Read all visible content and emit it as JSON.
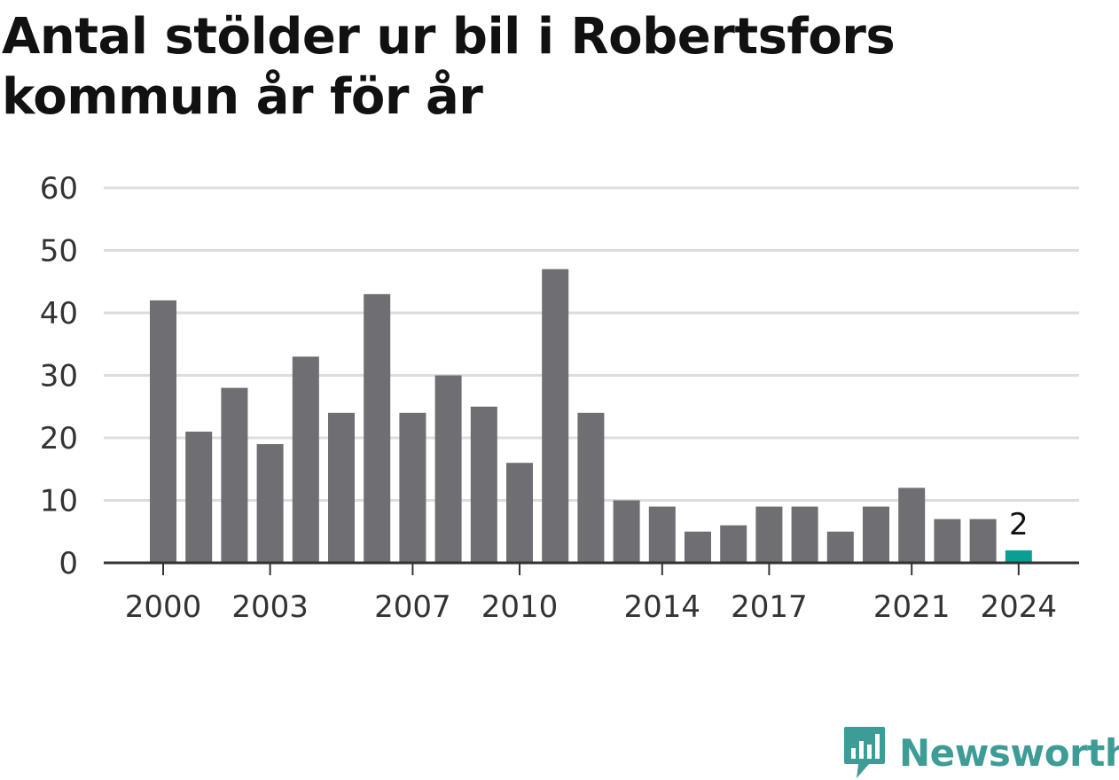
{
  "title": "Antal stölder ur bil i Robertsfors kommun år för år",
  "brand": {
    "name": "Newsworthy",
    "icon": "newsworthy-logo-icon",
    "color": "#3e9c96"
  },
  "colors": {
    "bar": "#6e6e73",
    "highlight": "#0a9e94",
    "grid": "#dddddd",
    "axis": "#333333"
  },
  "chart_data": {
    "type": "bar",
    "title": "Antal stölder ur bil i Robertsfors kommun år för år",
    "xlabel": "",
    "ylabel": "",
    "categories": [
      "2000",
      "2001",
      "2002",
      "2003",
      "2004",
      "2005",
      "2006",
      "2007",
      "2008",
      "2009",
      "2010",
      "2011",
      "2012",
      "2013",
      "2014",
      "2015",
      "2016",
      "2017",
      "2018",
      "2019",
      "2020",
      "2021",
      "2022",
      "2023",
      "2024"
    ],
    "values": [
      42,
      21,
      28,
      19,
      33,
      24,
      43,
      24,
      30,
      25,
      16,
      47,
      24,
      10,
      9,
      5,
      6,
      9,
      9,
      5,
      9,
      12,
      7,
      7,
      2
    ],
    "x_tick_labels": [
      "2000",
      "2003",
      "2007",
      "2010",
      "2014",
      "2017",
      "2021",
      "2024"
    ],
    "y_ticks": [
      0,
      10,
      20,
      30,
      40,
      50,
      60
    ],
    "ylim": [
      0,
      60
    ],
    "grid": true,
    "legend": "none",
    "highlight_category": "2024",
    "annotations": [
      {
        "category": "2024",
        "text": "2"
      }
    ]
  }
}
